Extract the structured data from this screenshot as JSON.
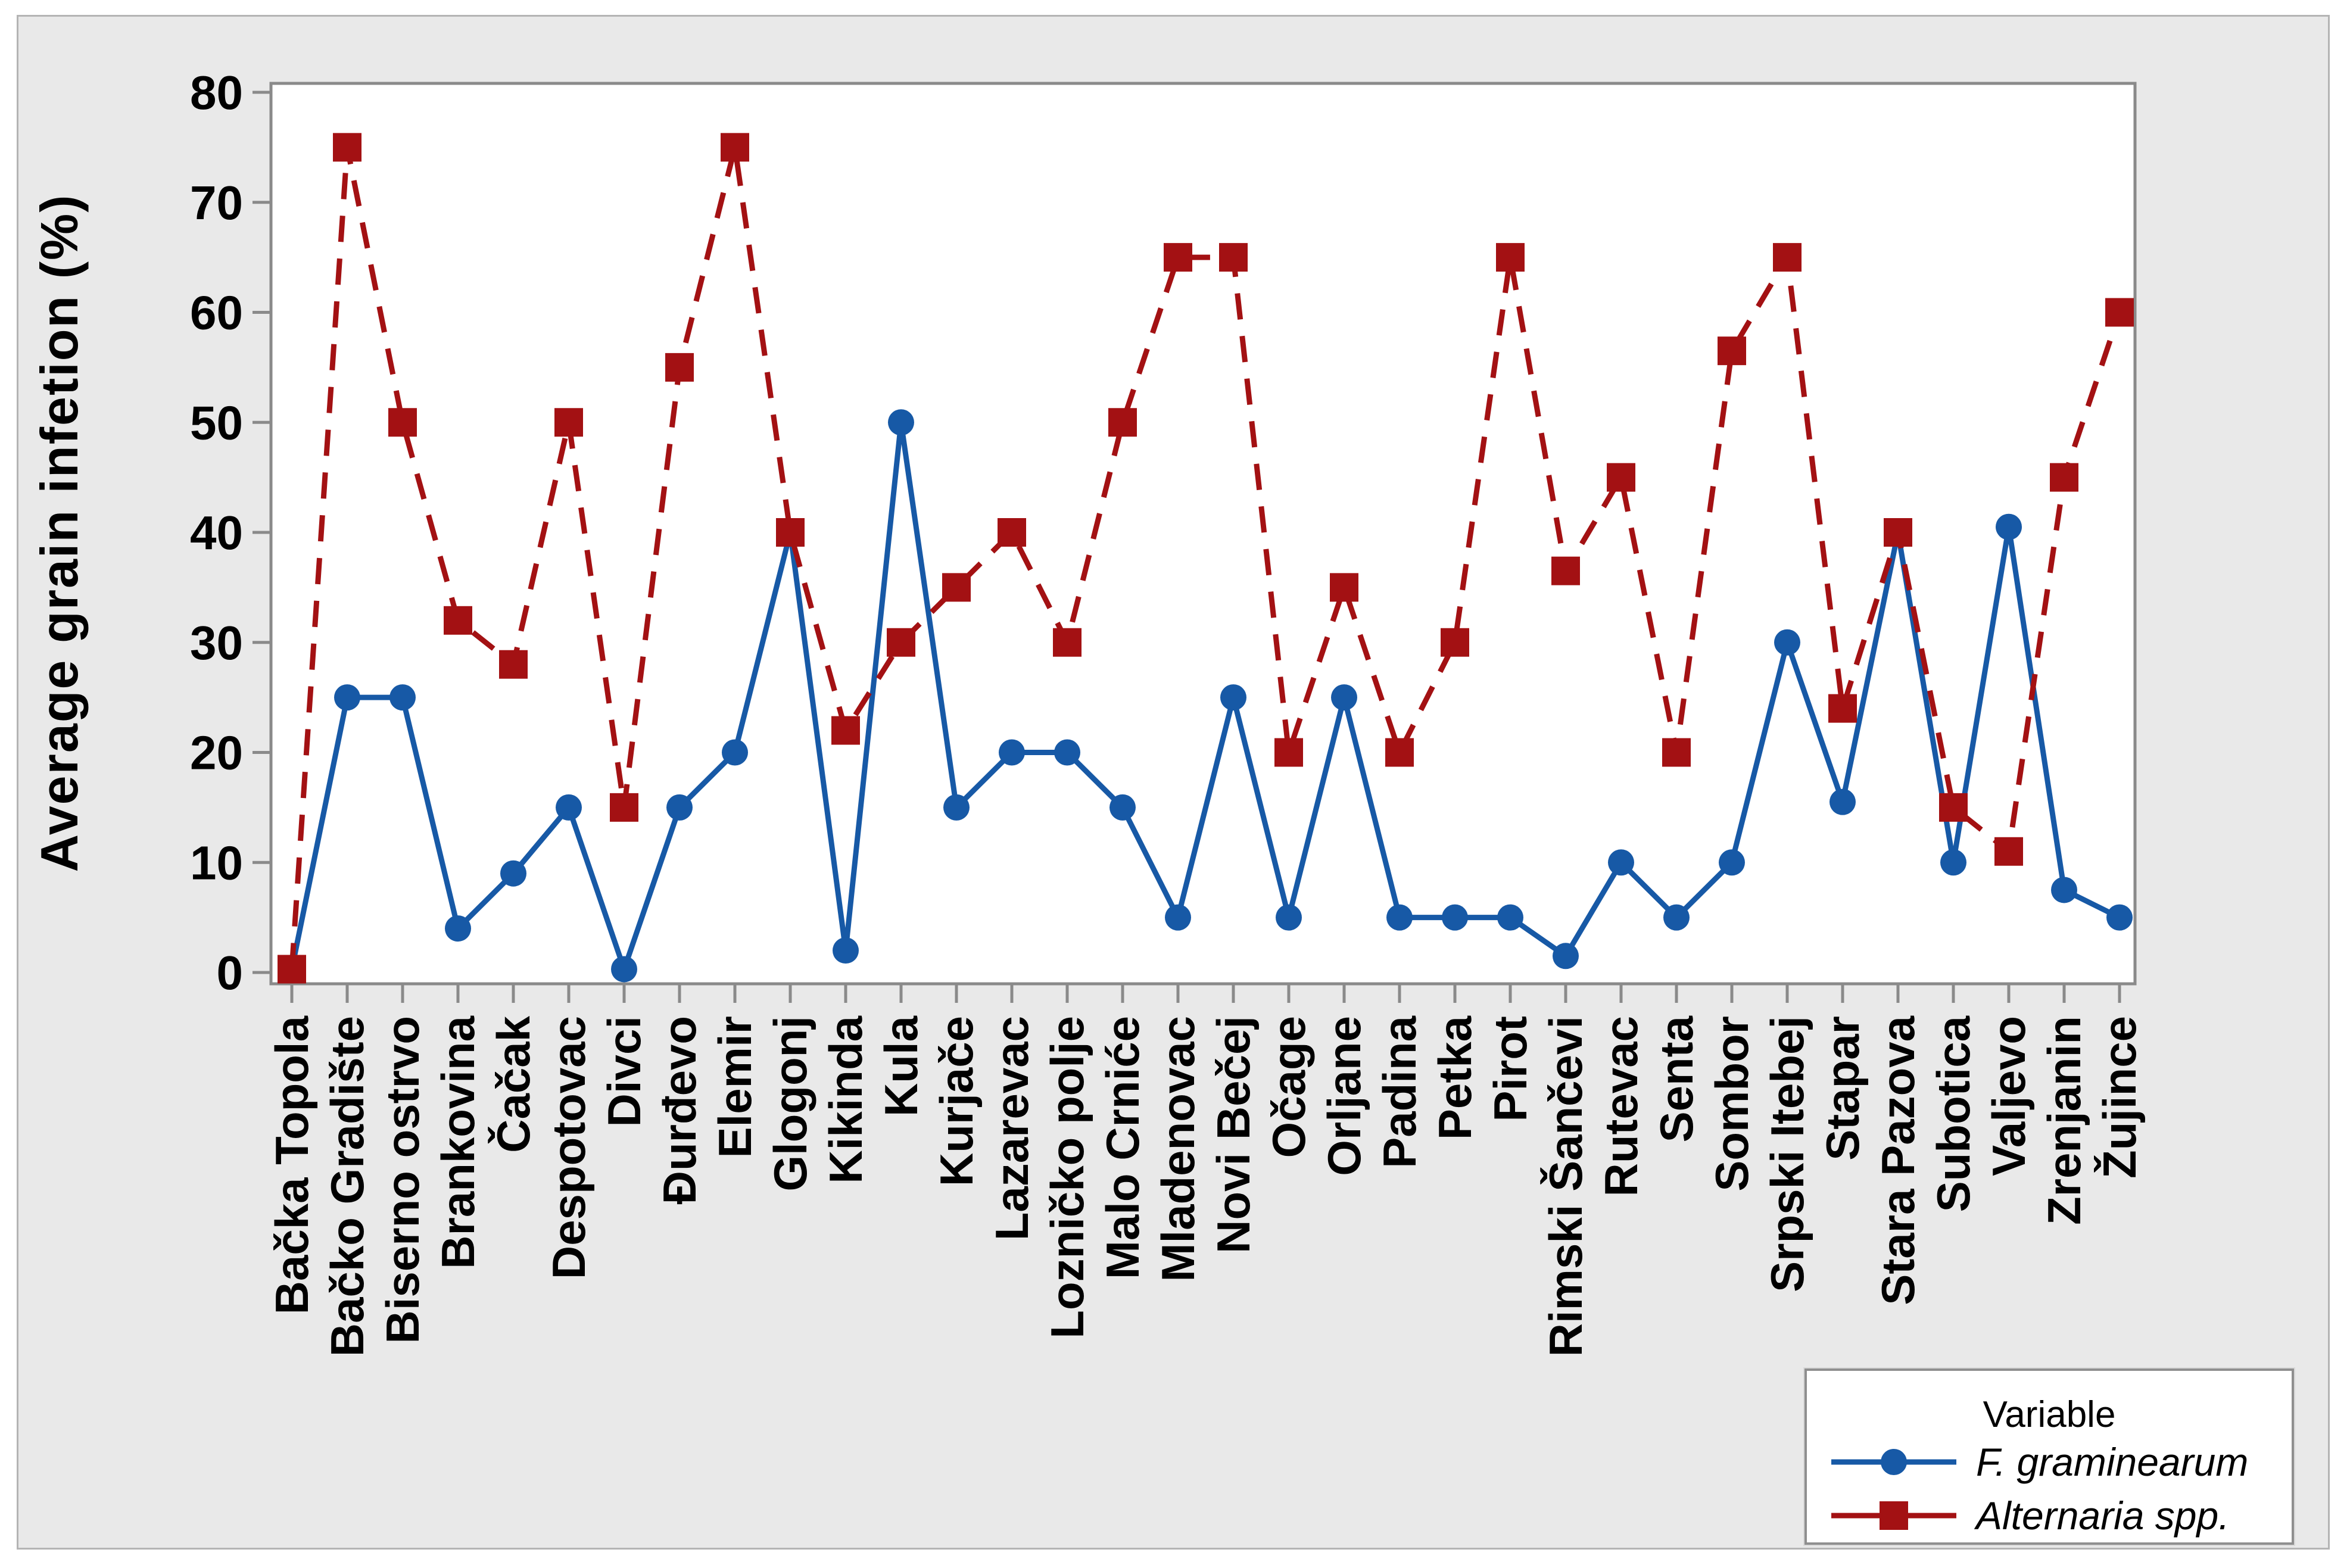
{
  "figure": {
    "y_axis_title": "Average grain infetion (%)"
  },
  "legend": {
    "title": "Variable",
    "entries": [
      {
        "label": "F. graminearum",
        "marker": "blue-circle",
        "line": "solid"
      },
      {
        "label": "Alternaria spp.",
        "marker": "red-square",
        "line": "dashed"
      }
    ]
  },
  "colors": {
    "series_blue": "#1759a6",
    "series_red": "#a31113",
    "axis_gray": "#8a8a8a",
    "panel_bg": "#e9e9e9",
    "panel_border": "#b4b4b4",
    "plot_bg": "#ffffff",
    "text": "#000000"
  },
  "chart_data": {
    "type": "line",
    "title": "",
    "xlabel": "",
    "ylabel": "Average grain infetion (%)",
    "ylim": [
      0,
      80
    ],
    "y_ticks": [
      0,
      10,
      20,
      30,
      40,
      50,
      60,
      70,
      80
    ],
    "grid": false,
    "legend_position": "bottom-right",
    "legend_title": "Variable",
    "categories": [
      "Bačka Topola",
      "Bačko Gradište",
      "Biserno ostrvo",
      "Brankovina",
      "Čačak",
      "Despotovac",
      "Divci",
      "Đurđevo",
      "Elemir",
      "Glogonj",
      "Kikinda",
      "Kula",
      "Kurjače",
      "Lazarevac",
      "Lozničko polje",
      "Malo Crniće",
      "Mladenovac",
      "Novi Bečej",
      "Očage",
      "Orljane",
      "Padina",
      "Petka",
      "Pirot",
      "Rimski Šančevi",
      "Rutevac",
      "Senta",
      "Sombor",
      "Srpski Itebej",
      "Stapar",
      "Stara Pazova",
      "Subotica",
      "Valjevo",
      "Zrenjanin",
      "Žujince"
    ],
    "series": [
      {
        "name": "F. graminearum",
        "marker": "circle",
        "line_style": "solid",
        "color": "#1759a6",
        "values": [
          0.3,
          25,
          25,
          4,
          9,
          15,
          0.3,
          15,
          20,
          40,
          2,
          50,
          15,
          20,
          20,
          15,
          5,
          25,
          5,
          25,
          5,
          5,
          5,
          1.5,
          10,
          5,
          10,
          30,
          15.5,
          40,
          10,
          40.5,
          7.5,
          5
        ]
      },
      {
        "name": "Alternaria spp.",
        "marker": "square",
        "line_style": "dashed",
        "color": "#a31113",
        "values": [
          0.3,
          75,
          50,
          32,
          28,
          50,
          15,
          55,
          75,
          40,
          22,
          30,
          35,
          40,
          30,
          50,
          65,
          65,
          20,
          35,
          20,
          30,
          65,
          36.5,
          45,
          20,
          56.5,
          65,
          24,
          40,
          15,
          11,
          45,
          60
        ]
      }
    ]
  }
}
